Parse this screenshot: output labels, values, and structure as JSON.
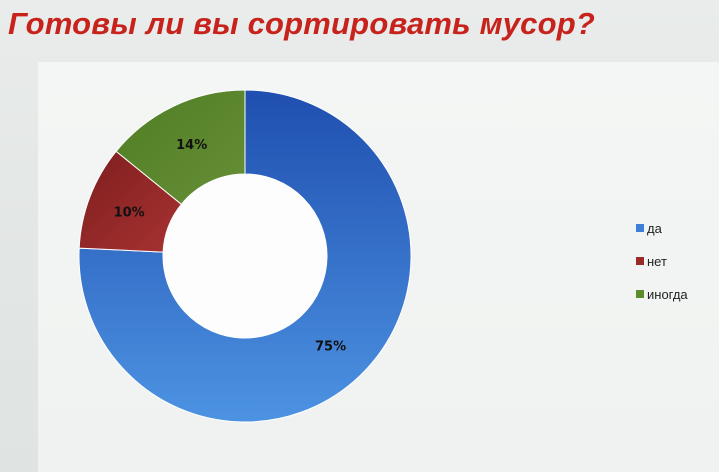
{
  "title": "Готовы ли вы сортировать мусор?",
  "colors": {
    "title": "#c7221b",
    "segments": [
      "#3d7fd6",
      "#9a2a2a",
      "#5c8a2c"
    ]
  },
  "chart_data": {
    "type": "pie",
    "variant": "doughnut",
    "categories": [
      "да",
      "нет",
      "иногда"
    ],
    "values": [
      75,
      10,
      14
    ],
    "data_labels": [
      "75%",
      "10%",
      "14%"
    ],
    "legend_position": "right"
  }
}
